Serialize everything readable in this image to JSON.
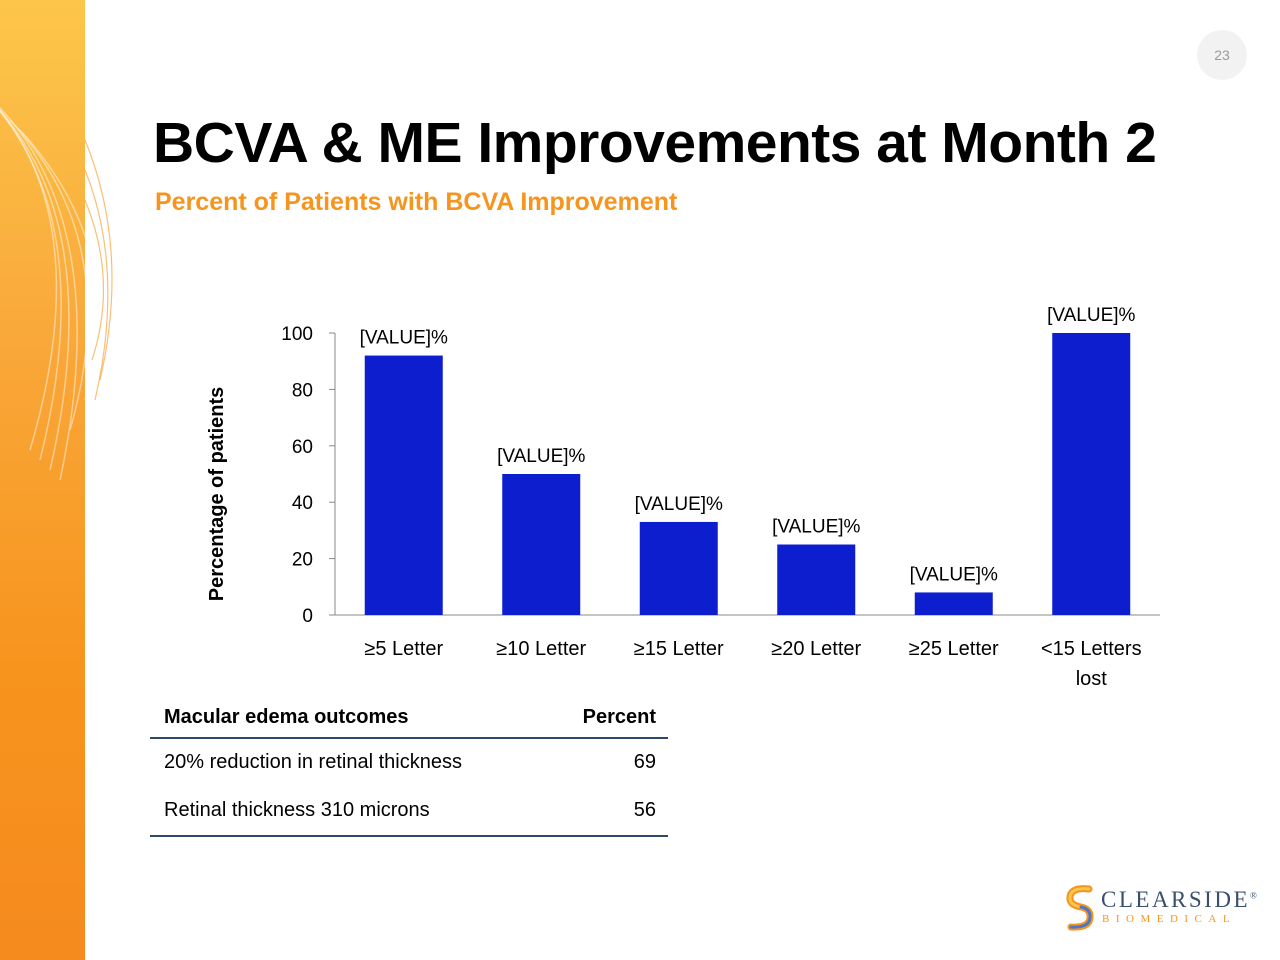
{
  "slide": {
    "page_number": "23",
    "title": "BCVA & ME Improvements at Month 2",
    "subtitle": "Percent of Patients with BCVA Improvement"
  },
  "chart_data": {
    "type": "bar",
    "categories": [
      [
        "≥5 Letter"
      ],
      [
        "≥10 Letter"
      ],
      [
        "≥15 Letter"
      ],
      [
        "≥20 Letter"
      ],
      [
        "≥25 Letter"
      ],
      [
        "<15 Letters",
        "lost"
      ]
    ],
    "values": [
      92,
      50,
      33,
      25,
      8,
      100
    ],
    "data_labels": [
      "[VALUE]%",
      "[VALUE]%",
      "[VALUE]%",
      "[VALUE]%",
      "[VALUE]%",
      "[VALUE]%"
    ],
    "ylabel": "Percentage of patients",
    "ylim": [
      0,
      100
    ],
    "yticks": [
      0,
      20,
      40,
      60,
      80,
      100
    ],
    "grid": false,
    "bar_color": "#0d1ecf"
  },
  "macular_table": {
    "headers": [
      "Macular edema outcomes",
      "Percent"
    ],
    "rows": [
      [
        "20% reduction in retinal thickness",
        "69"
      ],
      [
        "Retinal thickness 310 microns",
        "56"
      ]
    ]
  },
  "logo": {
    "word": "CLEARSIDE",
    "sub": "BIOMEDICAL",
    "mark": "®",
    "colors": {
      "primary": "#3a4f6e",
      "accent": "#f7941d"
    }
  },
  "colors": {
    "accent": "#f7941d",
    "bar": "#0d1ecf"
  }
}
